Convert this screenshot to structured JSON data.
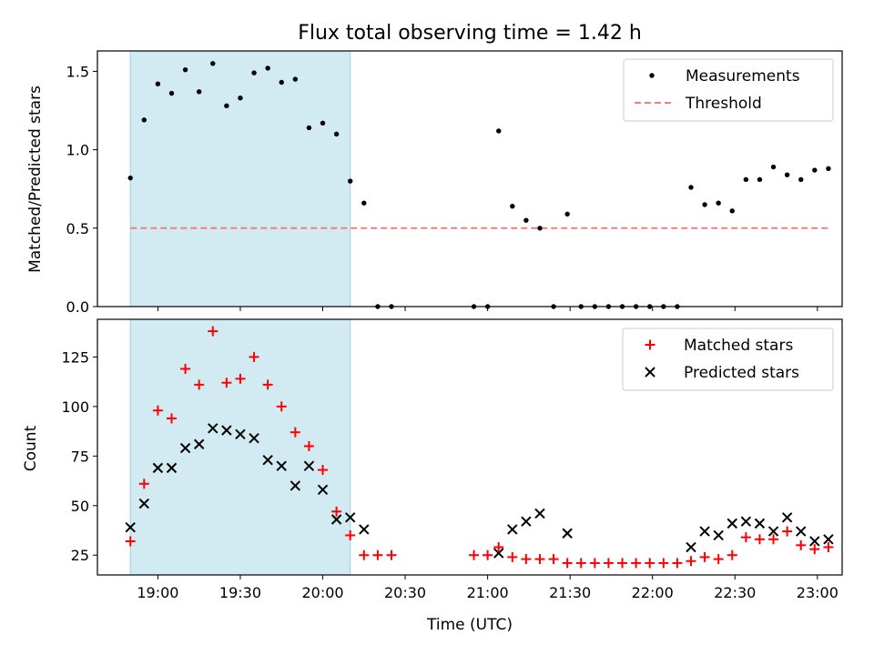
{
  "chart_data": [
    {
      "type": "scatter",
      "title": "Flux total observing time = 1.42 h",
      "xlabel": "",
      "ylabel": "Matched/Predicted stars",
      "x_unit": "Time (UTC)",
      "xlim": [
        "18:38",
        "23:09"
      ],
      "ylim": [
        0,
        1.63
      ],
      "yticks": [
        0.0,
        0.5,
        1.0,
        1.5
      ],
      "ytick_labels": [
        "0.0",
        "0.5",
        "1.0",
        "1.5"
      ],
      "highlight_span": [
        "18:50",
        "20:10"
      ],
      "highlight_color": "#add8e6",
      "legend": "top-right",
      "series": [
        {
          "name": "Measurements",
          "color": "#000000",
          "marker": "dot",
          "points": [
            [
              "18:50",
              0.82
            ],
            [
              "18:55",
              1.19
            ],
            [
              "19:00",
              1.42
            ],
            [
              "19:05",
              1.36
            ],
            [
              "19:10",
              1.51
            ],
            [
              "19:15",
              1.37
            ],
            [
              "19:20",
              1.55
            ],
            [
              "19:25",
              1.28
            ],
            [
              "19:30",
              1.33
            ],
            [
              "19:35",
              1.49
            ],
            [
              "19:40",
              1.52
            ],
            [
              "19:45",
              1.43
            ],
            [
              "19:50",
              1.45
            ],
            [
              "19:55",
              1.14
            ],
            [
              "20:00",
              1.17
            ],
            [
              "20:05",
              1.1
            ],
            [
              "20:10",
              0.8
            ],
            [
              "20:15",
              0.66
            ],
            [
              "20:20",
              0.0
            ],
            [
              "20:25",
              0.0
            ],
            [
              "20:55",
              0.0
            ],
            [
              "21:00",
              0.0
            ],
            [
              "21:04",
              1.12
            ],
            [
              "21:09",
              0.64
            ],
            [
              "21:14",
              0.55
            ],
            [
              "21:19",
              0.5
            ],
            [
              "21:24",
              0.0
            ],
            [
              "21:29",
              0.59
            ],
            [
              "21:34",
              0.0
            ],
            [
              "21:39",
              0.0
            ],
            [
              "21:44",
              0.0
            ],
            [
              "21:49",
              0.0
            ],
            [
              "21:54",
              0.0
            ],
            [
              "21:59",
              0.0
            ],
            [
              "22:04",
              0.0
            ],
            [
              "22:09",
              0.0
            ],
            [
              "22:14",
              0.76
            ],
            [
              "22:19",
              0.65
            ],
            [
              "22:24",
              0.66
            ],
            [
              "22:29",
              0.61
            ],
            [
              "22:34",
              0.81
            ],
            [
              "22:39",
              0.81
            ],
            [
              "22:44",
              0.89
            ],
            [
              "22:49",
              0.84
            ],
            [
              "22:54",
              0.81
            ],
            [
              "22:59",
              0.87
            ],
            [
              "23:04",
              0.88
            ]
          ]
        },
        {
          "name": "Threshold",
          "color": "#f08080",
          "line": "dashed",
          "points": [
            [
              "18:50",
              0.5
            ],
            [
              "23:04",
              0.5
            ]
          ]
        }
      ]
    },
    {
      "type": "scatter",
      "xlabel": "Time (UTC)",
      "ylabel": "Count",
      "xlim": [
        "18:38",
        "23:09"
      ],
      "ylim": [
        15,
        144
      ],
      "yticks": [
        25,
        50,
        75,
        100,
        125
      ],
      "ytick_labels": [
        "25",
        "50",
        "75",
        "100",
        "125"
      ],
      "xticks": [
        "19:00",
        "19:30",
        "20:00",
        "20:30",
        "21:00",
        "21:30",
        "22:00",
        "22:30",
        "23:00"
      ],
      "xtick_labels": [
        "19:00",
        "19:30",
        "20:00",
        "20:30",
        "21:00",
        "21:30",
        "22:00",
        "22:30",
        "23:00"
      ],
      "highlight_span": [
        "18:50",
        "20:10"
      ],
      "highlight_color": "#add8e6",
      "legend": "top-right",
      "series": [
        {
          "name": "Matched stars",
          "color": "#ff0000",
          "marker": "plus",
          "points": [
            [
              "18:50",
              32
            ],
            [
              "18:55",
              61
            ],
            [
              "19:00",
              98
            ],
            [
              "19:05",
              94
            ],
            [
              "19:10",
              119
            ],
            [
              "19:15",
              111
            ],
            [
              "19:20",
              138
            ],
            [
              "19:25",
              112
            ],
            [
              "19:30",
              114
            ],
            [
              "19:35",
              125
            ],
            [
              "19:40",
              111
            ],
            [
              "19:45",
              100
            ],
            [
              "19:50",
              87
            ],
            [
              "19:55",
              80
            ],
            [
              "20:00",
              68
            ],
            [
              "20:05",
              47
            ],
            [
              "20:10",
              35
            ],
            [
              "20:15",
              25
            ],
            [
              "20:20",
              25
            ],
            [
              "20:25",
              25
            ],
            [
              "20:55",
              25
            ],
            [
              "21:00",
              25
            ],
            [
              "21:04",
              29
            ],
            [
              "21:09",
              24
            ],
            [
              "21:14",
              23
            ],
            [
              "21:19",
              23
            ],
            [
              "21:24",
              23
            ],
            [
              "21:29",
              21
            ],
            [
              "21:34",
              21
            ],
            [
              "21:39",
              21
            ],
            [
              "21:44",
              21
            ],
            [
              "21:49",
              21
            ],
            [
              "21:54",
              21
            ],
            [
              "21:59",
              21
            ],
            [
              "22:04",
              21
            ],
            [
              "22:09",
              21
            ],
            [
              "22:14",
              22
            ],
            [
              "22:19",
              24
            ],
            [
              "22:24",
              23
            ],
            [
              "22:29",
              25
            ],
            [
              "22:34",
              34
            ],
            [
              "22:39",
              33
            ],
            [
              "22:44",
              33
            ],
            [
              "22:49",
              37
            ],
            [
              "22:54",
              30
            ],
            [
              "22:59",
              28
            ],
            [
              "23:04",
              29
            ]
          ]
        },
        {
          "name": "Predicted stars",
          "color": "#000000",
          "marker": "x",
          "points": [
            [
              "18:50",
              39
            ],
            [
              "18:55",
              51
            ],
            [
              "19:00",
              69
            ],
            [
              "19:05",
              69
            ],
            [
              "19:10",
              79
            ],
            [
              "19:15",
              81
            ],
            [
              "19:20",
              89
            ],
            [
              "19:25",
              88
            ],
            [
              "19:30",
              86
            ],
            [
              "19:35",
              84
            ],
            [
              "19:40",
              73
            ],
            [
              "19:45",
              70
            ],
            [
              "19:50",
              60
            ],
            [
              "19:55",
              70
            ],
            [
              "20:00",
              58
            ],
            [
              "20:05",
              43
            ],
            [
              "20:10",
              44
            ],
            [
              "20:15",
              38
            ],
            [
              "21:04",
              26
            ],
            [
              "21:09",
              38
            ],
            [
              "21:14",
              42
            ],
            [
              "21:19",
              46
            ],
            [
              "21:29",
              36
            ],
            [
              "22:14",
              29
            ],
            [
              "22:19",
              37
            ],
            [
              "22:24",
              35
            ],
            [
              "22:29",
              41
            ],
            [
              "22:34",
              42
            ],
            [
              "22:39",
              41
            ],
            [
              "22:44",
              37
            ],
            [
              "22:49",
              44
            ],
            [
              "22:54",
              37
            ],
            [
              "22:59",
              32
            ],
            [
              "23:04",
              33
            ]
          ]
        }
      ]
    }
  ]
}
